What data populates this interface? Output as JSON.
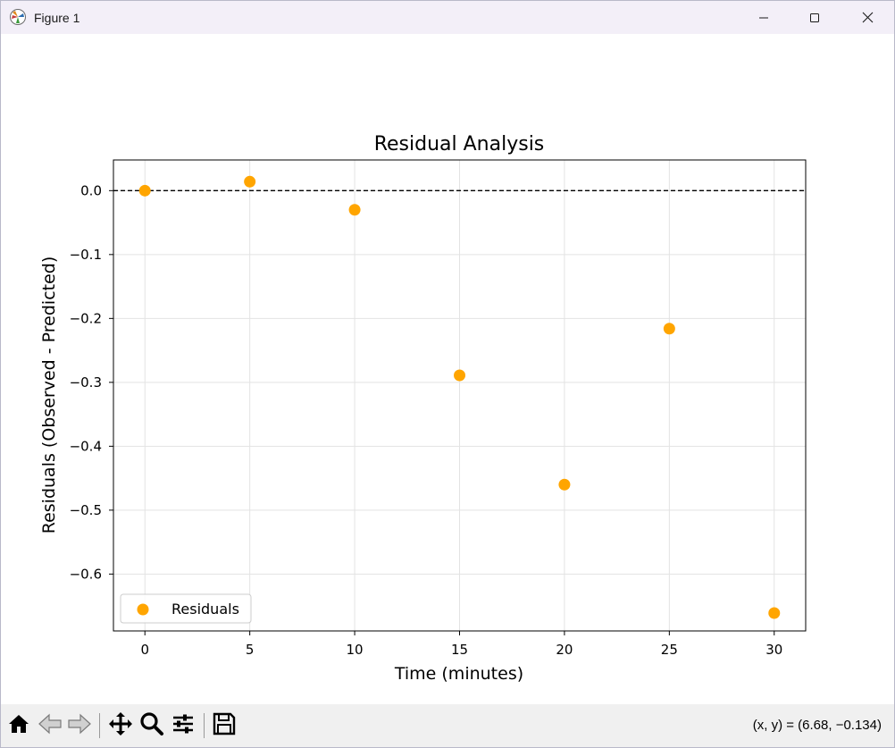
{
  "window": {
    "title": "Figure 1",
    "app_icon": "matplotlib-icon",
    "controls": [
      "minimize-icon",
      "maximize-icon",
      "close-icon"
    ]
  },
  "toolbar": {
    "buttons": [
      "home-icon",
      "back-icon",
      "forward-icon",
      "pan-icon",
      "zoom-icon",
      "configure-subplots-icon",
      "save-icon"
    ],
    "coords": "(x, y) = (6.68, −0.134)"
  },
  "chart_data": {
    "type": "scatter",
    "title": "Residual Analysis",
    "xlabel": "Time (minutes)",
    "ylabel": "Residuals (Observed - Predicted)",
    "xlim": [
      -1.5,
      31.5
    ],
    "ylim": [
      -0.689,
      0.048
    ],
    "xticks": [
      0,
      5,
      10,
      15,
      20,
      25,
      30
    ],
    "yticks": [
      0.0,
      -0.1,
      -0.2,
      -0.3,
      -0.4,
      -0.5,
      -0.6
    ],
    "ytick_labels": [
      "0.0",
      "−0.1",
      "−0.2",
      "−0.3",
      "−0.4",
      "−0.5",
      "−0.6"
    ],
    "grid": true,
    "reference_line": {
      "y": 0,
      "style": "dashed",
      "color": "#000000"
    },
    "legend_position": "lower-left",
    "series": [
      {
        "name": "Residuals",
        "color": "#ffa500",
        "x": [
          0,
          5,
          10,
          15,
          20,
          25,
          30
        ],
        "y": [
          0.0,
          0.014,
          -0.03,
          -0.289,
          -0.46,
          -0.216,
          -0.661
        ]
      }
    ]
  }
}
